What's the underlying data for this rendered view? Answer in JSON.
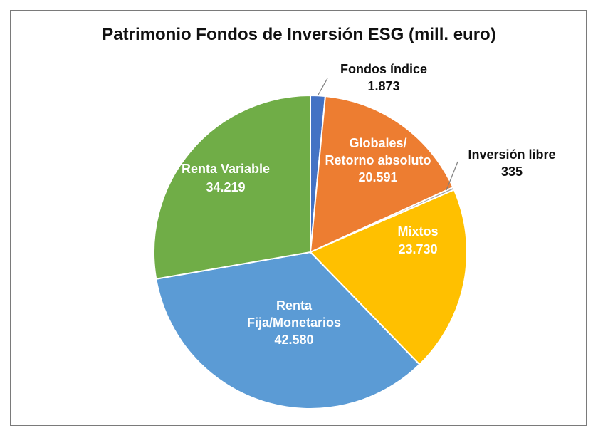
{
  "chart_data": {
    "type": "pie",
    "title": "Patrimonio Fondos de Inversión ESG (mill. euro)",
    "slices": [
      {
        "label": "Fondos índice",
        "value": 1873,
        "display": "1.873",
        "color": "#4472C4",
        "label_color": "#111111"
      },
      {
        "label": "Globales/ Retorno absoluto",
        "value": 20591,
        "display": "20.591",
        "color": "#ED7D31",
        "label_color": "#ffffff"
      },
      {
        "label": "Inversión libre",
        "value": 335,
        "display": "335",
        "color": "#A5A5A5",
        "label_color": "#111111"
      },
      {
        "label": "Mixtos",
        "value": 23730,
        "display": "23.730",
        "color": "#FFC000",
        "label_color": "#ffffff"
      },
      {
        "label": "Renta Fija/Monetarios",
        "value": 42580,
        "display": "42.580",
        "color": "#5B9BD5",
        "label_color": "#ffffff"
      },
      {
        "label": "Renta Variable",
        "value": 34219,
        "display": "34.219",
        "color": "#70AD47",
        "label_color": "#ffffff"
      }
    ],
    "legend": "none"
  }
}
